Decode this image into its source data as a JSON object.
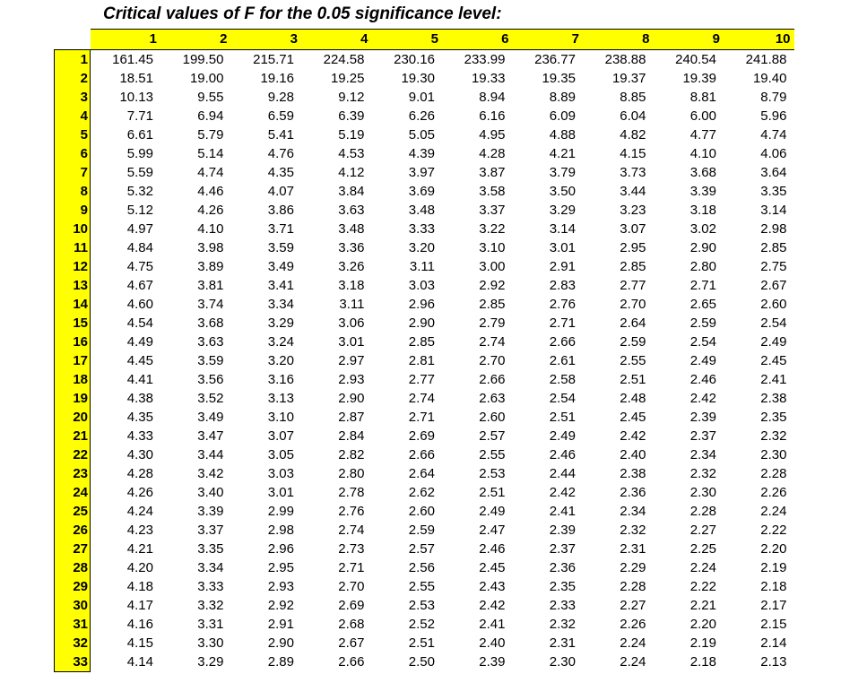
{
  "title": "Critical values of F for the 0.05 significance level:",
  "columns": [
    "1",
    "2",
    "3",
    "4",
    "5",
    "6",
    "7",
    "8",
    "9",
    "10"
  ],
  "rows": [
    {
      "label": "1",
      "values": [
        "161.45",
        "199.50",
        "215.71",
        "224.58",
        "230.16",
        "233.99",
        "236.77",
        "238.88",
        "240.54",
        "241.88"
      ]
    },
    {
      "label": "2",
      "values": [
        "18.51",
        "19.00",
        "19.16",
        "19.25",
        "19.30",
        "19.33",
        "19.35",
        "19.37",
        "19.39",
        "19.40"
      ]
    },
    {
      "label": "3",
      "values": [
        "10.13",
        "9.55",
        "9.28",
        "9.12",
        "9.01",
        "8.94",
        "8.89",
        "8.85",
        "8.81",
        "8.79"
      ]
    },
    {
      "label": "4",
      "values": [
        "7.71",
        "6.94",
        "6.59",
        "6.39",
        "6.26",
        "6.16",
        "6.09",
        "6.04",
        "6.00",
        "5.96"
      ]
    },
    {
      "label": "5",
      "values": [
        "6.61",
        "5.79",
        "5.41",
        "5.19",
        "5.05",
        "4.95",
        "4.88",
        "4.82",
        "4.77",
        "4.74"
      ]
    },
    {
      "label": "6",
      "values": [
        "5.99",
        "5.14",
        "4.76",
        "4.53",
        "4.39",
        "4.28",
        "4.21",
        "4.15",
        "4.10",
        "4.06"
      ]
    },
    {
      "label": "7",
      "values": [
        "5.59",
        "4.74",
        "4.35",
        "4.12",
        "3.97",
        "3.87",
        "3.79",
        "3.73",
        "3.68",
        "3.64"
      ]
    },
    {
      "label": "8",
      "values": [
        "5.32",
        "4.46",
        "4.07",
        "3.84",
        "3.69",
        "3.58",
        "3.50",
        "3.44",
        "3.39",
        "3.35"
      ]
    },
    {
      "label": "9",
      "values": [
        "5.12",
        "4.26",
        "3.86",
        "3.63",
        "3.48",
        "3.37",
        "3.29",
        "3.23",
        "3.18",
        "3.14"
      ]
    },
    {
      "label": "10",
      "values": [
        "4.97",
        "4.10",
        "3.71",
        "3.48",
        "3.33",
        "3.22",
        "3.14",
        "3.07",
        "3.02",
        "2.98"
      ]
    },
    {
      "label": "11",
      "values": [
        "4.84",
        "3.98",
        "3.59",
        "3.36",
        "3.20",
        "3.10",
        "3.01",
        "2.95",
        "2.90",
        "2.85"
      ]
    },
    {
      "label": "12",
      "values": [
        "4.75",
        "3.89",
        "3.49",
        "3.26",
        "3.11",
        "3.00",
        "2.91",
        "2.85",
        "2.80",
        "2.75"
      ]
    },
    {
      "label": "13",
      "values": [
        "4.67",
        "3.81",
        "3.41",
        "3.18",
        "3.03",
        "2.92",
        "2.83",
        "2.77",
        "2.71",
        "2.67"
      ]
    },
    {
      "label": "14",
      "values": [
        "4.60",
        "3.74",
        "3.34",
        "3.11",
        "2.96",
        "2.85",
        "2.76",
        "2.70",
        "2.65",
        "2.60"
      ]
    },
    {
      "label": "15",
      "values": [
        "4.54",
        "3.68",
        "3.29",
        "3.06",
        "2.90",
        "2.79",
        "2.71",
        "2.64",
        "2.59",
        "2.54"
      ]
    },
    {
      "label": "16",
      "values": [
        "4.49",
        "3.63",
        "3.24",
        "3.01",
        "2.85",
        "2.74",
        "2.66",
        "2.59",
        "2.54",
        "2.49"
      ]
    },
    {
      "label": "17",
      "values": [
        "4.45",
        "3.59",
        "3.20",
        "2.97",
        "2.81",
        "2.70",
        "2.61",
        "2.55",
        "2.49",
        "2.45"
      ]
    },
    {
      "label": "18",
      "values": [
        "4.41",
        "3.56",
        "3.16",
        "2.93",
        "2.77",
        "2.66",
        "2.58",
        "2.51",
        "2.46",
        "2.41"
      ]
    },
    {
      "label": "19",
      "values": [
        "4.38",
        "3.52",
        "3.13",
        "2.90",
        "2.74",
        "2.63",
        "2.54",
        "2.48",
        "2.42",
        "2.38"
      ]
    },
    {
      "label": "20",
      "values": [
        "4.35",
        "3.49",
        "3.10",
        "2.87",
        "2.71",
        "2.60",
        "2.51",
        "2.45",
        "2.39",
        "2.35"
      ]
    },
    {
      "label": "21",
      "values": [
        "4.33",
        "3.47",
        "3.07",
        "2.84",
        "2.69",
        "2.57",
        "2.49",
        "2.42",
        "2.37",
        "2.32"
      ]
    },
    {
      "label": "22",
      "values": [
        "4.30",
        "3.44",
        "3.05",
        "2.82",
        "2.66",
        "2.55",
        "2.46",
        "2.40",
        "2.34",
        "2.30"
      ]
    },
    {
      "label": "23",
      "values": [
        "4.28",
        "3.42",
        "3.03",
        "2.80",
        "2.64",
        "2.53",
        "2.44",
        "2.38",
        "2.32",
        "2.28"
      ]
    },
    {
      "label": "24",
      "values": [
        "4.26",
        "3.40",
        "3.01",
        "2.78",
        "2.62",
        "2.51",
        "2.42",
        "2.36",
        "2.30",
        "2.26"
      ]
    },
    {
      "label": "25",
      "values": [
        "4.24",
        "3.39",
        "2.99",
        "2.76",
        "2.60",
        "2.49",
        "2.41",
        "2.34",
        "2.28",
        "2.24"
      ]
    },
    {
      "label": "26",
      "values": [
        "4.23",
        "3.37",
        "2.98",
        "2.74",
        "2.59",
        "2.47",
        "2.39",
        "2.32",
        "2.27",
        "2.22"
      ]
    },
    {
      "label": "27",
      "values": [
        "4.21",
        "3.35",
        "2.96",
        "2.73",
        "2.57",
        "2.46",
        "2.37",
        "2.31",
        "2.25",
        "2.20"
      ]
    },
    {
      "label": "28",
      "values": [
        "4.20",
        "3.34",
        "2.95",
        "2.71",
        "2.56",
        "2.45",
        "2.36",
        "2.29",
        "2.24",
        "2.19"
      ]
    },
    {
      "label": "29",
      "values": [
        "4.18",
        "3.33",
        "2.93",
        "2.70",
        "2.55",
        "2.43",
        "2.35",
        "2.28",
        "2.22",
        "2.18"
      ]
    },
    {
      "label": "30",
      "values": [
        "4.17",
        "3.32",
        "2.92",
        "2.69",
        "2.53",
        "2.42",
        "2.33",
        "2.27",
        "2.21",
        "2.17"
      ]
    },
    {
      "label": "31",
      "values": [
        "4.16",
        "3.31",
        "2.91",
        "2.68",
        "2.52",
        "2.41",
        "2.32",
        "2.26",
        "2.20",
        "2.15"
      ]
    },
    {
      "label": "32",
      "values": [
        "4.15",
        "3.30",
        "2.90",
        "2.67",
        "2.51",
        "2.40",
        "2.31",
        "2.24",
        "2.19",
        "2.14"
      ]
    },
    {
      "label": "33",
      "values": [
        "4.14",
        "3.29",
        "2.89",
        "2.66",
        "2.50",
        "2.39",
        "2.30",
        "2.24",
        "2.18",
        "2.13"
      ]
    }
  ],
  "colors": {
    "header_bg": "#ffff00",
    "text": "#000000"
  }
}
